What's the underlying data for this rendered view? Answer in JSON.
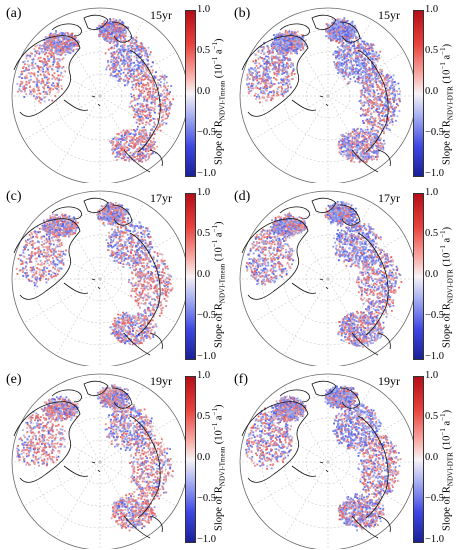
{
  "panels": [
    {
      "label": "(a)",
      "period": "15yr",
      "variable": "NDVI-Tmean"
    },
    {
      "label": "(b)",
      "period": "15yr",
      "variable": "NDVI-DTR"
    },
    {
      "label": "(c)",
      "period": "17yr",
      "variable": "NDVI-Tmean"
    },
    {
      "label": "(d)",
      "period": "17yr",
      "variable": "NDVI-DTR"
    },
    {
      "label": "(e)",
      "period": "19yr",
      "variable": "NDVI-Tmean"
    },
    {
      "label": "(f)",
      "period": "19yr",
      "variable": "NDVI-DTR"
    }
  ],
  "colorbar": {
    "ticks": [
      "1.0",
      "0.5",
      "0.0",
      "−0.5",
      "−1.0"
    ],
    "title_prefix": "Slope of R",
    "title_units_prefix": "(10",
    "title_units_exp1": "−1",
    "title_units_mid": " a",
    "title_units_exp2": "−1",
    "title_units_suffix": ")",
    "colors": [
      "#b40e18",
      "#f7f2f4",
      "#1a2096"
    ]
  }
}
